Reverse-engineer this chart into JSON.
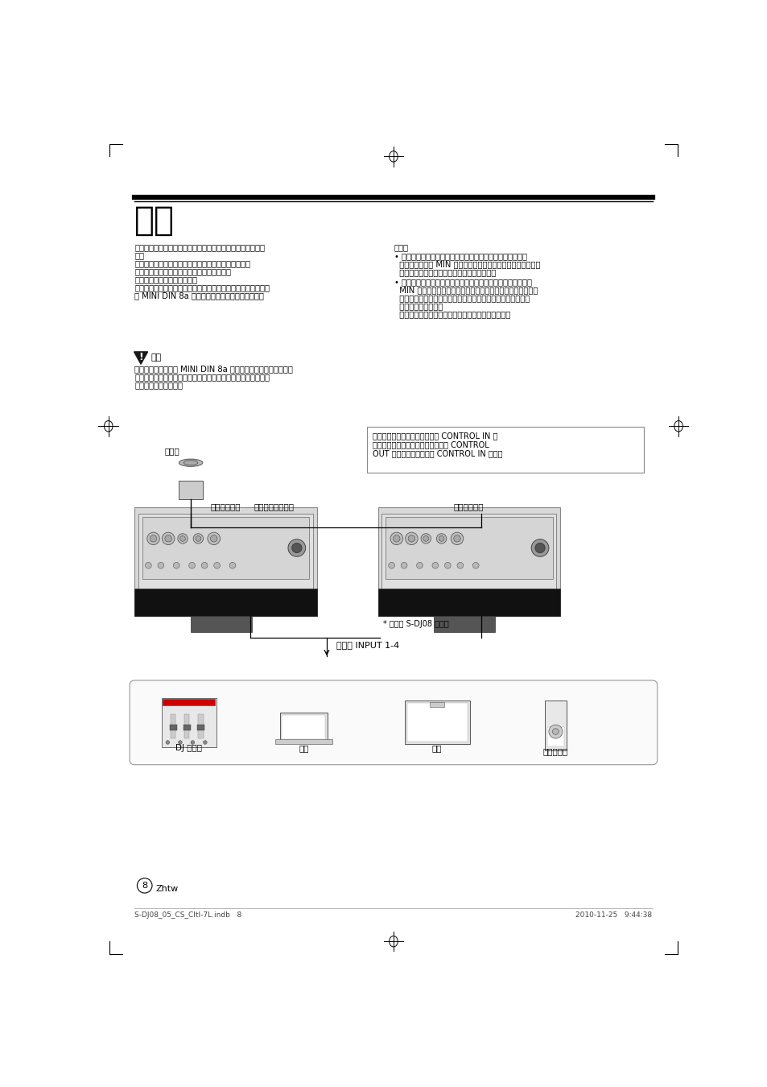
{
  "page_bg": "#ffffff",
  "title": "連線",
  "page_number": "8",
  "page_lang": "Zhtw",
  "footer_left": "S-DJ08_05_CS_CltI-7L.indb   8",
  "footer_right": "2010-11-25   9:44:38",
  "left_col_text": [
    "進行連線或變更連線時，請務必關閉電源並從插座上抜下電源",
    "線。",
    "另外，請確定已閱具他與揚聲器連接裝置的操作丁冊。",
    "在完成所有其他連線前，請不要連接電源線。",
    "只能使用隨附的屏蔽電源線。",
    "您所買的安裝環境若需比隨附纜線更長的連結纜線時，請購買市",
    "售 MINI DIN 8a 延長線，並連接隨附的連結纜線。"
  ],
  "right_col_header": "附註：",
  "right_col_text_1": [
    "• 連接控制器與連結纜線時，請以逆時針方向將揚聲器上要音",
    "  量旋鈕轉到底至 MIN 位置，因為當控制器與連結纜線突然分開",
    "  時，揚聲器可能會發出突如其來的大聲音效。"
  ],
  "right_col_text_2": [
    "• 連接控制器時，請以逆時針方向將控制器的音量旋鈕轉到底至",
    "  MIN 位置，然後在完成連線後再視這需調整音效音量。若在控",
    "  制器音量旋鈕為高設定位置時進行連線，揚聲器可能會發出突",
    "  如其來的大聲音效。",
    "  連接控制器時，會停用揚聲器的主要音量旋鈕功能。"
  ],
  "warning_title": "警告",
  "warning_text": [
    "請勿單獨使用市售的 MINI DIN 8a 延長線；請務必連接延長線與",
    "本機附屬的隨附連結纜線，因為若不使用隨附的纜線，可能會導",
    "致故障、起火或觸電。"
  ],
  "diagram_label_controller": "控制器",
  "diagram_label_cable": "連結纜線（配件）",
  "diagram_label_rear_left": "揚聲器後面板",
  "diagram_label_rear_right": "揚聲器後面板",
  "diagram_label_input": "連接至 INPUT 1-4",
  "diagram_label_dj": "DJ 混音器",
  "diagram_label_pc": "電腦",
  "diagram_label_tv": "電視",
  "diagram_label_portable": "可攜式音訊",
  "diagram_note": "* 圖例為 S-DJ08 機型。",
  "diagram_callout": "若控制器連接其中一個揚聲器的 CONTROL IN 接\n頭，請使用連結纜線連接該揚聲器的 CONTROL\nOUT 接頭與其他揚聲器的 CONTROL IN 接頭。"
}
